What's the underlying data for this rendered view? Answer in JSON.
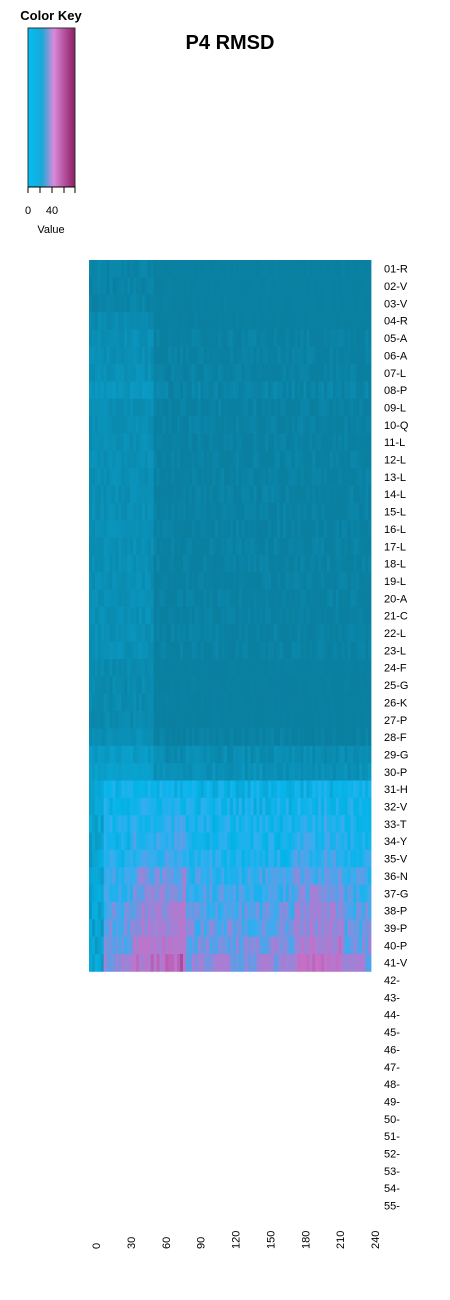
{
  "chart_data": {
    "type": "heatmap",
    "title": "P4 RMSD",
    "xlabel": "",
    "ylabel": "",
    "colorkey": {
      "title": "Color Key",
      "label": "Value",
      "ticks": [
        0,
        40
      ],
      "stops": [
        "#00bff3",
        "#d98ad9",
        "#8a1f63"
      ]
    },
    "x_ticks": [
      0,
      30,
      60,
      90,
      120,
      150,
      180,
      210,
      240
    ],
    "xlim": [
      0,
      240
    ],
    "rows": [
      "01-R",
      "02-V",
      "03-V",
      "04-R",
      "05-A",
      "06-A",
      "07-L",
      "08-P",
      "09-L",
      "10-Q",
      "11-L",
      "12-L",
      "13-L",
      "14-L",
      "15-L",
      "16-L",
      "17-L",
      "18-L",
      "19-L",
      "20-A",
      "21-C",
      "22-L",
      "23-L",
      "24-F",
      "25-G",
      "26-K",
      "27-P",
      "28-F",
      "29-G",
      "30-P",
      "31-H",
      "32-V",
      "33-T",
      "34-Y",
      "35-V",
      "36-N",
      "37-G",
      "38-P",
      "39-P",
      "40-P",
      "41-V",
      "42-",
      "43-",
      "44-",
      "45-",
      "46-",
      "47-",
      "48-",
      "49-",
      "50-",
      "51-",
      "52-",
      "53-",
      "54-",
      "55-"
    ],
    "row_mean_values": [
      6,
      6,
      6,
      7,
      8,
      8,
      8,
      9,
      8,
      8,
      8,
      8,
      8,
      8,
      8,
      8,
      8,
      8,
      8,
      8,
      8,
      8,
      8,
      7,
      7,
      7,
      7,
      8,
      10,
      11,
      20,
      22,
      23,
      23,
      24,
      27,
      28,
      30,
      31,
      33,
      35,
      null,
      null,
      null,
      null,
      null,
      null,
      null,
      null,
      null,
      null,
      null,
      null,
      null,
      null
    ]
  }
}
